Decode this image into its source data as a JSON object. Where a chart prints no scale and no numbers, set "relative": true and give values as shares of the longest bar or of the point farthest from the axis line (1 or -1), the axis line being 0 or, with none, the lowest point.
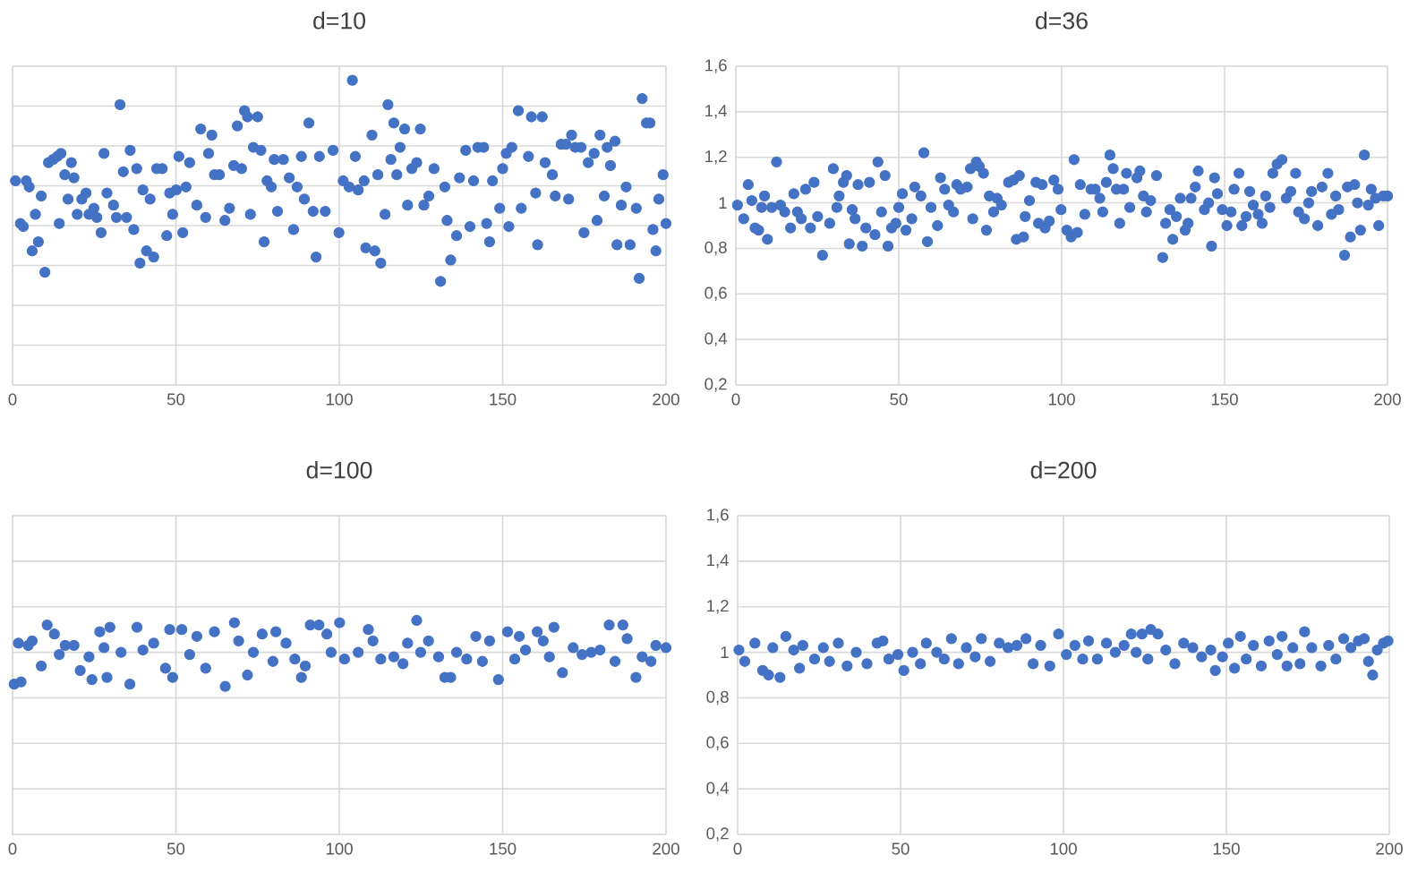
{
  "chart_data": [
    {
      "type": "scatter",
      "title": "d=10",
      "color": "#4472c4",
      "marker": "circle",
      "grid": true,
      "relative": true,
      "xlim": [
        0,
        200
      ],
      "xticks": [
        0,
        50,
        100,
        150,
        200
      ],
      "x": [
        0.9,
        2.4,
        3.3,
        4.2,
        5.1,
        6,
        7,
        7.9,
        8.8,
        9.9,
        11,
        12.4,
        13.7,
        14.3,
        14.8,
        16,
        17,
        18,
        18.8,
        19.8,
        21.2,
        22.5,
        23.4,
        24.9,
        25.8,
        27.1,
        28,
        28.9,
        30.9,
        31.8,
        32.9,
        33.9,
        34.9,
        36,
        37.1,
        38,
        39,
        39.9,
        41,
        42.1,
        43.2,
        44.1,
        45.8,
        47.2,
        48.1,
        49,
        50.1,
        50.9,
        52.1,
        53.1,
        54.2,
        56.4,
        57.6,
        59.1,
        60,
        61,
        61.8,
        63.3,
        65,
        66.4,
        67.7,
        68.8,
        70.1,
        71,
        71.9,
        72.8,
        73.7,
        75,
        76,
        77,
        77.9,
        79.2,
        80.1,
        81.1,
        82.9,
        84.7,
        86,
        87.1,
        88.4,
        89.3,
        90.7,
        92,
        92.9,
        93.9,
        95.7,
        98.1,
        99.9,
        101.2,
        103,
        104,
        104.9,
        105.8,
        107.6,
        108.1,
        110,
        110.9,
        111.8,
        112.7,
        114,
        114.9,
        115.8,
        116.7,
        117.6,
        118.6,
        120,
        120.9,
        122.2,
        123.7,
        124.8,
        125.9,
        127.4,
        129,
        131,
        132.3,
        133,
        134.1,
        135.9,
        136.8,
        138.7,
        140,
        141.1,
        142.4,
        144.2,
        145.1,
        146,
        146.9,
        149.1,
        150,
        151.1,
        151.9,
        152.8,
        154.8,
        155.7,
        157.9,
        158.8,
        160.1,
        160.7,
        162.1,
        163,
        165.2,
        166.1,
        167.9,
        169.4,
        170.2,
        171.1,
        172.2,
        174,
        174.9,
        176.2,
        178,
        178.9,
        179.8,
        181.1,
        182,
        183,
        184.4,
        185,
        186.3,
        187.8,
        189,
        190.9,
        191.8,
        192.7,
        194,
        195.1,
        196,
        196.9,
        197.8,
        199.1,
        200
      ],
      "values": [
        0.67,
        0.53,
        0.52,
        0.67,
        0.65,
        0.44,
        0.56,
        0.47,
        0.62,
        0.37,
        0.73,
        0.74,
        0.75,
        0.53,
        0.76,
        0.69,
        0.61,
        0.73,
        0.68,
        0.56,
        0.61,
        0.63,
        0.56,
        0.58,
        0.55,
        0.5,
        0.76,
        0.63,
        0.59,
        0.55,
        0.92,
        0.7,
        0.55,
        0.77,
        0.51,
        0.71,
        0.4,
        0.64,
        0.44,
        0.61,
        0.42,
        0.71,
        0.71,
        0.49,
        0.63,
        0.56,
        0.64,
        0.75,
        0.5,
        0.65,
        0.73,
        0.59,
        0.84,
        0.55,
        0.76,
        0.82,
        0.69,
        0.69,
        0.54,
        0.58,
        0.72,
        0.85,
        0.71,
        0.9,
        0.88,
        0.56,
        0.78,
        0.88,
        0.77,
        0.47,
        0.67,
        0.65,
        0.74,
        0.57,
        0.74,
        0.68,
        0.51,
        0.65,
        0.75,
        0.61,
        0.86,
        0.57,
        0.42,
        0.75,
        0.57,
        0.77,
        0.5,
        0.67,
        0.65,
        1,
        0.75,
        0.64,
        0.67,
        0.45,
        0.82,
        0.44,
        0.69,
        0.4,
        0.56,
        0.92,
        0.74,
        0.86,
        0.69,
        0.78,
        0.84,
        0.59,
        0.71,
        0.73,
        0.84,
        0.59,
        0.62,
        0.71,
        0.34,
        0.65,
        0.54,
        0.41,
        0.49,
        0.68,
        0.77,
        0.52,
        0.67,
        0.78,
        0.78,
        0.53,
        0.47,
        0.67,
        0.58,
        0.71,
        0.76,
        0.52,
        0.78,
        0.9,
        0.58,
        0.75,
        0.88,
        0.63,
        0.46,
        0.88,
        0.73,
        0.69,
        0.62,
        0.79,
        0.79,
        0.61,
        0.82,
        0.78,
        0.78,
        0.5,
        0.73,
        0.76,
        0.54,
        0.82,
        0.62,
        0.78,
        0.72,
        0.8,
        0.46,
        0.59,
        0.65,
        0.46,
        0.58,
        0.35,
        0.94,
        0.86,
        0.86,
        0.51,
        0.44,
        0.61,
        0.69,
        0.53
      ]
    },
    {
      "type": "scatter",
      "title": "d=36",
      "color": "#4472c4",
      "marker": "circle",
      "grid": true,
      "xlim": [
        0,
        200
      ],
      "xticks": [
        0,
        50,
        100,
        150,
        200
      ],
      "ylim": [
        0.2,
        1.6
      ],
      "yticks": [
        {
          "value": 0.2,
          "label": "0,2"
        },
        {
          "value": 0.4,
          "label": "0,4"
        },
        {
          "value": 0.6,
          "label": "0,6"
        },
        {
          "value": 0.8,
          "label": "0,8"
        },
        1,
        {
          "value": 1.2,
          "label": "1,2"
        },
        {
          "value": 1.4,
          "label": "1,4"
        },
        {
          "value": 1.6,
          "label": "1,6"
        }
      ],
      "x": [
        0.5,
        2.4,
        3.8,
        4.9,
        5.9,
        7,
        7.9,
        8.8,
        9.7,
        11,
        12.5,
        13.7,
        15,
        16.8,
        17.8,
        18.9,
        20.1,
        21.4,
        22.9,
        24,
        25.1,
        26.6,
        28.8,
        29.9,
        31,
        31.7,
        33,
        34,
        34.8,
        35.7,
        36.6,
        37.5,
        38.8,
        39.9,
        41,
        42.7,
        43.6,
        44.7,
        45.8,
        46.7,
        47.8,
        49.1,
        50,
        51.1,
        52.2,
        54,
        54.9,
        56.8,
        57.7,
        58.8,
        59.9,
        61.9,
        62.8,
        64.1,
        65.3,
        66.8,
        67.8,
        69,
        71,
        72,
        72.7,
        73.8,
        74.7,
        76,
        76.9,
        77.8,
        79.1,
        80.2,
        81.5,
        83.7,
        85.2,
        86.1,
        87,
        88.3,
        88.8,
        90.1,
        92.1,
        92.9,
        94,
        94.9,
        96.2,
        97.6,
        98.9,
        99.8,
        101.6,
        102.9,
        103.8,
        104.8,
        105.7,
        107.1,
        109,
        110.3,
        111.7,
        112.6,
        113.7,
        114.8,
        115.8,
        116.8,
        117.8,
        119,
        119.9,
        120.9,
        123.1,
        124,
        125.1,
        126,
        127.3,
        129.1,
        131,
        131.9,
        133.2,
        134.1,
        135.2,
        136.4,
        137.9,
        138.8,
        139.7,
        141,
        141.9,
        143.8,
        145.1,
        146,
        146.9,
        147.8,
        149.3,
        150.7,
        152,
        152.9,
        154.4,
        155.3,
        156.6,
        157.7,
        158.8,
        160.3,
        161.5,
        162.6,
        163.9,
        164.8,
        166.1,
        167.6,
        168.9,
        170.3,
        171.8,
        172.7,
        174.5,
        175.8,
        176.7,
        178.6,
        179.9,
        181.7,
        182.8,
        184.1,
        185,
        186.8,
        187.7,
        188.6,
        189.9,
        190.8,
        191.7,
        192.9,
        194.1,
        195,
        196.3,
        197.3,
        198.7,
        200
      ],
      "values": [
        0.99,
        0.93,
        1.08,
        1.01,
        0.89,
        0.88,
        0.98,
        1.03,
        0.84,
        0.98,
        1.18,
        0.99,
        0.96,
        0.89,
        1.04,
        0.96,
        0.93,
        1.06,
        0.89,
        1.09,
        0.94,
        0.77,
        0.91,
        1.15,
        0.98,
        1.03,
        1.09,
        1.12,
        0.82,
        0.97,
        0.93,
        1.08,
        0.81,
        0.89,
        1.09,
        0.86,
        1.18,
        0.96,
        1.12,
        0.81,
        0.89,
        0.91,
        0.98,
        1.04,
        0.88,
        0.93,
        1.07,
        1.03,
        1.22,
        0.83,
        0.98,
        0.9,
        1.11,
        1.06,
        0.99,
        0.96,
        1.08,
        1.06,
        1.07,
        1.15,
        0.93,
        1.18,
        1.16,
        1.13,
        0.88,
        1.03,
        0.96,
        1.02,
        0.99,
        1.09,
        1.1,
        0.84,
        1.12,
        0.85,
        0.94,
        1.01,
        1.09,
        0.91,
        1.08,
        0.89,
        0.92,
        1.1,
        1.06,
        0.97,
        0.88,
        0.85,
        1.19,
        0.87,
        1.08,
        0.95,
        1.06,
        1.06,
        1.02,
        0.96,
        1.09,
        1.21,
        1.15,
        1.06,
        0.91,
        1.06,
        1.13,
        0.98,
        1.11,
        1.14,
        1.03,
        0.96,
        1.01,
        1.12,
        0.76,
        0.91,
        0.97,
        0.84,
        0.94,
        1.02,
        0.88,
        0.91,
        1.02,
        1.07,
        1.14,
        0.97,
        1.0,
        0.81,
        1.11,
        1.04,
        0.97,
        0.9,
        0.96,
        1.06,
        1.13,
        0.9,
        0.94,
        1.05,
        0.99,
        0.95,
        0.91,
        1.03,
        0.98,
        1.13,
        1.17,
        1.19,
        1.02,
        1.05,
        1.13,
        0.96,
        0.93,
        1.0,
        1.05,
        0.9,
        1.07,
        1.13,
        0.95,
        1.03,
        0.97,
        0.77,
        1.07,
        0.85,
        1.08,
        1.0,
        0.88,
        1.21,
        0.99,
        1.06,
        1.02,
        0.9,
        1.03,
        1.03
      ]
    },
    {
      "type": "scatter",
      "title": "d=100",
      "color": "#4472c4",
      "marker": "circle",
      "grid": true,
      "tick_labels": "x",
      "xlim": [
        0,
        200
      ],
      "xticks": [
        0,
        50,
        100,
        150,
        200
      ],
      "ylim": [
        0.2,
        1.6
      ],
      "yticks": [
        0.2,
        0.4,
        0.6,
        0.8,
        1,
        1.2,
        1.4,
        1.6
      ],
      "x": [
        0.5,
        1.8,
        2.6,
        4.8,
        6,
        8.8,
        10.6,
        12.8,
        14.3,
        16.1,
        18.8,
        20.7,
        23.4,
        24.3,
        26.7,
        28,
        28.9,
        29.8,
        33.2,
        35.9,
        38.1,
        39.9,
        43.2,
        46.8,
        48.1,
        49,
        51.8,
        54.2,
        56.4,
        59.1,
        61.8,
        65.1,
        67.9,
        69.2,
        71.9,
        73.7,
        76.4,
        79.7,
        80.6,
        83.7,
        86.4,
        88.4,
        89.6,
        91.1,
        93.8,
        96.2,
        97.5,
        100.1,
        101.6,
        105.8,
        108.9,
        110.3,
        112.7,
        116.7,
        119.5,
        120.9,
        123.7,
        124.9,
        127.3,
        130.4,
        132.3,
        134.1,
        135.9,
        139,
        141.8,
        143.8,
        146,
        148.7,
        151.5,
        153.7,
        155.1,
        157,
        160.6,
        162.4,
        164.3,
        165.7,
        168.3,
        171.6,
        174.3,
        177.1,
        179.8,
        182.6,
        184.4,
        186.8,
        188.1,
        190.8,
        192.7,
        195.4,
        196.9,
        200
      ],
      "values": [
        0.86,
        1.04,
        0.87,
        1.03,
        1.05,
        0.94,
        1.12,
        1.08,
        0.99,
        1.03,
        1.03,
        0.92,
        0.98,
        0.88,
        1.09,
        1.02,
        0.89,
        1.11,
        1.0,
        0.86,
        1.11,
        1.01,
        1.04,
        0.93,
        1.1,
        0.89,
        1.1,
        0.99,
        1.07,
        0.93,
        1.09,
        0.85,
        1.13,
        1.05,
        0.9,
        1.0,
        1.08,
        0.96,
        1.09,
        1.04,
        0.97,
        0.89,
        0.94,
        1.12,
        1.12,
        1.08,
        1.0,
        1.13,
        0.97,
        1.0,
        1.1,
        1.05,
        0.97,
        0.98,
        0.95,
        1.04,
        1.14,
        1.0,
        1.05,
        0.98,
        0.89,
        0.89,
        1.0,
        0.97,
        1.07,
        0.96,
        1.05,
        0.88,
        1.09,
        0.97,
        1.07,
        1.01,
        1.09,
        1.05,
        0.98,
        1.11,
        0.91,
        1.02,
        0.99,
        1.0,
        1.01,
        1.12,
        0.96,
        1.12,
        1.06,
        0.89,
        0.98,
        0.96,
        1.03,
        1.02
      ]
    },
    {
      "type": "scatter",
      "title": "d=200",
      "color": "#4472c4",
      "marker": "circle",
      "grid": true,
      "xlim": [
        0,
        200
      ],
      "xticks": [
        0,
        50,
        100,
        150,
        200
      ],
      "ylim": [
        0.2,
        1.6
      ],
      "yticks": [
        {
          "value": 0.2,
          "label": "0,2"
        },
        {
          "value": 0.4,
          "label": "0,4"
        },
        {
          "value": 0.6,
          "label": "0,6"
        },
        {
          "value": 0.8,
          "label": "0,8"
        },
        1,
        {
          "value": 1.2,
          "label": "1,2"
        },
        {
          "value": 1.4,
          "label": "1,4"
        },
        {
          "value": 1.6,
          "label": "1,6"
        }
      ],
      "x": [
        0.4,
        2.2,
        5.3,
        7.7,
        9.5,
        10.8,
        13,
        14.8,
        17.2,
        19,
        20,
        23.6,
        26.3,
        28.2,
        30.9,
        33.6,
        36.4,
        39.7,
        42.8,
        44.6,
        46.4,
        49.2,
        51,
        53.7,
        56.1,
        57.9,
        61.1,
        63.4,
        65.6,
        67.8,
        70.2,
        72.9,
        74.8,
        77.5,
        80.3,
        83,
        85.7,
        88.5,
        90.7,
        93,
        95.8,
        98.5,
        100.9,
        103.5,
        105.9,
        107.7,
        110.4,
        113.2,
        115.9,
        118.6,
        120.8,
        122.3,
        124.1,
        125.9,
        126.8,
        129,
        131.4,
        134.2,
        136.9,
        139.7,
        142.4,
        145.2,
        146.6,
        148.8,
        150.6,
        152.5,
        154.3,
        156.1,
        158.3,
        160.7,
        163.1,
        165.6,
        167.1,
        168.6,
        170.4,
        172.6,
        174,
        176.2,
        179,
        181.4,
        183.6,
        186,
        188.2,
        190.5,
        192.3,
        193.6,
        194.9,
        196.3,
        198.2,
        199.6
      ],
      "values": [
        1.01,
        0.96,
        1.04,
        0.92,
        0.9,
        1.02,
        0.89,
        1.07,
        1.01,
        0.93,
        1.03,
        0.97,
        1.02,
        0.96,
        1.04,
        0.94,
        1.0,
        0.95,
        1.04,
        1.05,
        0.97,
        0.99,
        0.92,
        1.0,
        0.95,
        1.04,
        1.0,
        0.97,
        1.06,
        0.95,
        1.02,
        0.98,
        1.06,
        0.96,
        1.04,
        1.02,
        1.03,
        1.06,
        0.95,
        1.03,
        0.94,
        1.08,
        0.99,
        1.03,
        0.97,
        1.05,
        0.97,
        1.04,
        1.0,
        1.03,
        1.08,
        1.0,
        1.08,
        0.97,
        1.1,
        1.08,
        1.01,
        0.95,
        1.04,
        1.02,
        0.98,
        1.01,
        0.92,
        0.98,
        1.04,
        0.93,
        1.07,
        0.97,
        1.03,
        0.94,
        1.05,
        0.99,
        1.07,
        0.94,
        1.02,
        0.95,
        1.09,
        1.02,
        0.94,
        1.03,
        0.97,
        1.06,
        1.02,
        1.05,
        1.06,
        0.96,
        0.9,
        1.01,
        1.04,
        1.05
      ]
    }
  ]
}
